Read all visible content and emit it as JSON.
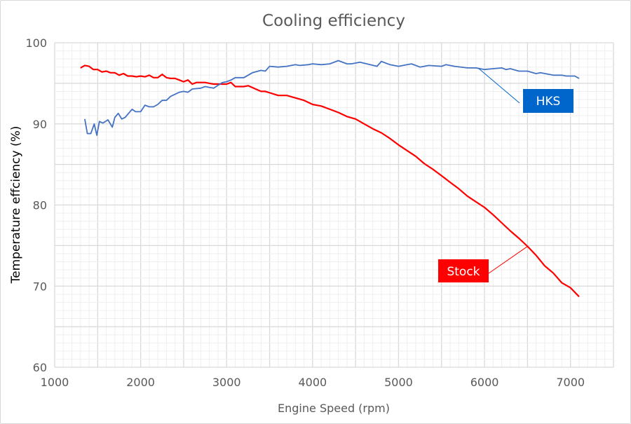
{
  "chart_data": {
    "type": "line",
    "title": "Cooling efficiency",
    "xlabel": "Engine Speed (rpm)",
    "ylabel": "Temperature effciency (%)",
    "xlim": [
      1000,
      7500
    ],
    "ylim": [
      60,
      100
    ],
    "x_ticks": [
      "1000",
      "2000",
      "3000",
      "4000",
      "5000",
      "6000",
      "7000"
    ],
    "y_ticks": [
      "60",
      "70",
      "80",
      "90",
      "100"
    ],
    "grid": true,
    "series": [
      {
        "name": "Stock",
        "color": "#FF0000",
        "label_color": "#FF0000",
        "x": [
          1300,
          1350,
          1400,
          1450,
          1500,
          1550,
          1600,
          1650,
          1700,
          1750,
          1800,
          1850,
          1900,
          1950,
          2000,
          2050,
          2100,
          2150,
          2200,
          2250,
          2300,
          2350,
          2400,
          2450,
          2500,
          2550,
          2600,
          2650,
          2700,
          2750,
          2800,
          2850,
          2900,
          2950,
          3000,
          3050,
          3100,
          3200,
          3250,
          3400,
          3450,
          3600,
          3700,
          3800,
          3900,
          4000,
          4100,
          4200,
          4300,
          4400,
          4500,
          4600,
          4700,
          4800,
          4900,
          5000,
          5100,
          5200,
          5300,
          5400,
          5500,
          5600,
          5700,
          5800,
          5900,
          6000,
          6100,
          6200,
          6300,
          6400,
          6500,
          6600,
          6700,
          6800,
          6900,
          7000,
          7100
        ],
        "y": [
          96.9,
          97.2,
          97.1,
          96.7,
          96.7,
          96.4,
          96.5,
          96.3,
          96.3,
          96.0,
          96.2,
          95.9,
          95.9,
          95.8,
          95.9,
          95.8,
          96.0,
          95.7,
          95.7,
          96.1,
          95.7,
          95.6,
          95.6,
          95.4,
          95.2,
          95.4,
          94.9,
          95.1,
          95.1,
          95.1,
          95.0,
          94.9,
          94.9,
          94.9,
          94.9,
          95.1,
          94.6,
          94.6,
          94.7,
          94.0,
          94.0,
          93.5,
          93.5,
          93.2,
          92.9,
          92.4,
          92.2,
          91.8,
          91.4,
          90.9,
          90.6,
          90.0,
          89.4,
          88.9,
          88.2,
          87.4,
          86.7,
          86.0,
          85.1,
          84.4,
          83.6,
          82.8,
          82.0,
          81.1,
          80.4,
          79.7,
          78.8,
          77.8,
          76.8,
          75.9,
          74.9,
          73.8,
          72.5,
          71.6,
          70.4,
          69.8,
          68.7
        ]
      },
      {
        "name": "HKS",
        "color": "#4472C4",
        "label_color": "#0066CC",
        "x": [
          1350,
          1380,
          1420,
          1460,
          1490,
          1520,
          1560,
          1620,
          1670,
          1700,
          1740,
          1780,
          1820,
          1900,
          1940,
          2000,
          2050,
          2100,
          2150,
          2200,
          2250,
          2300,
          2350,
          2450,
          2500,
          2550,
          2600,
          2700,
          2750,
          2800,
          2850,
          2950,
          3000,
          3050,
          3100,
          3200,
          3250,
          3300,
          3400,
          3450,
          3500,
          3600,
          3700,
          3800,
          3850,
          3950,
          4000,
          4100,
          4200,
          4300,
          4400,
          4450,
          4550,
          4750,
          4800,
          4900,
          5000,
          5100,
          5150,
          5250,
          5350,
          5500,
          5550,
          5650,
          5800,
          5900,
          6000,
          6100,
          6200,
          6250,
          6300,
          6400,
          6500,
          6600,
          6650,
          6800,
          6900,
          6950,
          7050,
          7100
        ],
        "y": [
          90.6,
          88.8,
          88.8,
          90.0,
          88.6,
          90.3,
          90.1,
          90.5,
          89.6,
          90.8,
          91.3,
          90.6,
          90.8,
          91.8,
          91.5,
          91.5,
          92.3,
          92.1,
          92.1,
          92.4,
          92.9,
          92.9,
          93.4,
          93.9,
          94.0,
          93.9,
          94.3,
          94.4,
          94.6,
          94.5,
          94.4,
          95.1,
          95.2,
          95.4,
          95.7,
          95.7,
          96.0,
          96.3,
          96.6,
          96.5,
          97.1,
          97.0,
          97.1,
          97.3,
          97.2,
          97.3,
          97.4,
          97.3,
          97.4,
          97.8,
          97.4,
          97.4,
          97.6,
          97.1,
          97.7,
          97.3,
          97.1,
          97.3,
          97.4,
          97.0,
          97.2,
          97.1,
          97.3,
          97.1,
          96.9,
          96.9,
          96.7,
          96.8,
          96.9,
          96.7,
          96.8,
          96.5,
          96.5,
          96.2,
          96.3,
          96.0,
          96.0,
          95.9,
          95.9,
          95.6
        ]
      }
    ]
  }
}
